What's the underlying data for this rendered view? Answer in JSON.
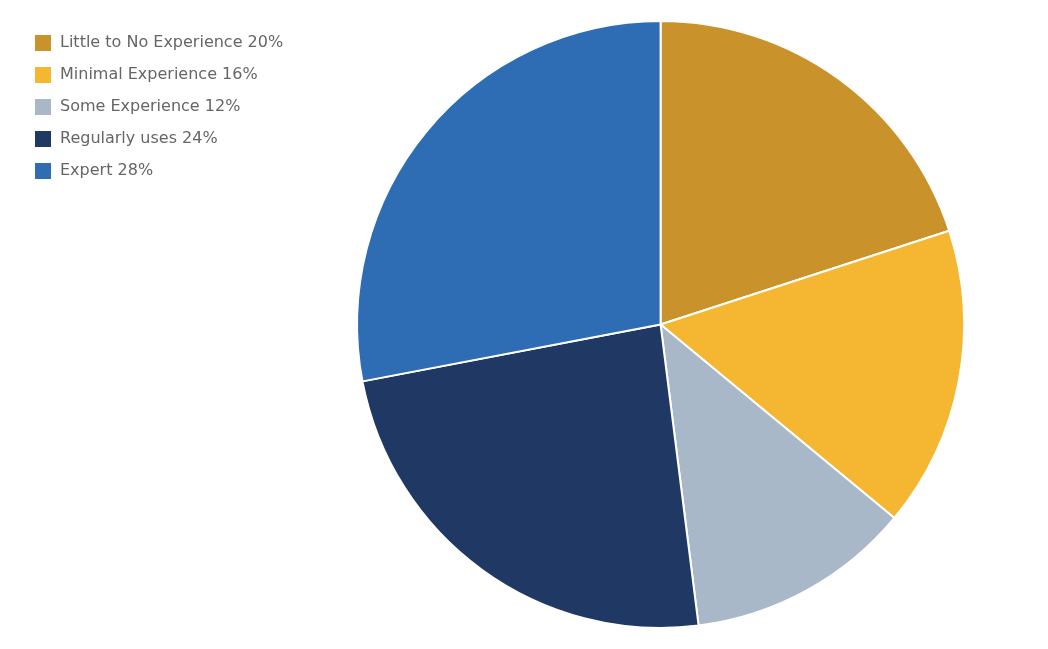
{
  "chart_data": {
    "type": "pie",
    "categories": [
      "Little to No Experience 20%",
      "Minimal Experience 16%",
      "Some Experience 12%",
      "Regularly uses 24%",
      "Expert 28%"
    ],
    "values": [
      20,
      16,
      12,
      24,
      28
    ],
    "colors": [
      "#C9922A",
      "#F5B731",
      "#A9B8C8",
      "#1F3864",
      "#2E6DB4"
    ],
    "legend": "upper left"
  }
}
